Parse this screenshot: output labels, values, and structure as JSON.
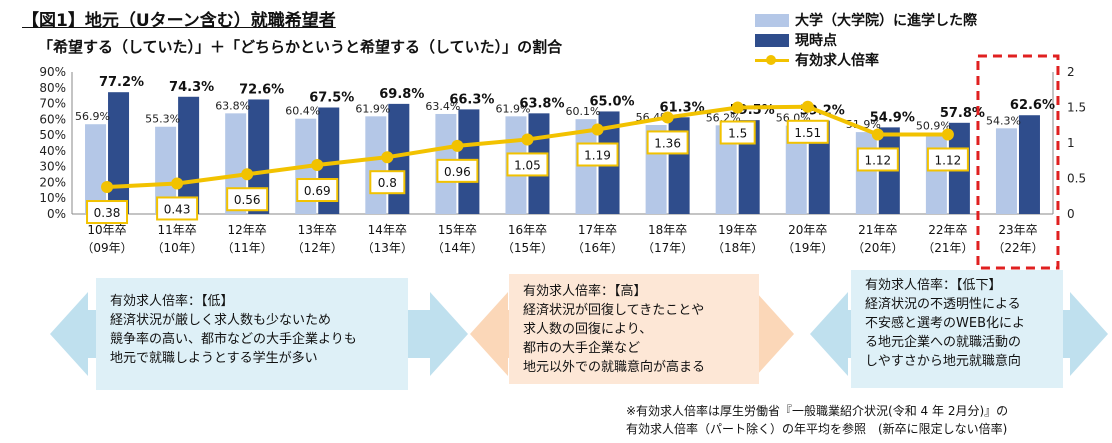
{
  "title": "【図1】地元（Uターン含む）就職希望者",
  "subtitle": "「希望する（していた）」＋「どちらかというと希望する（していた）」の割合",
  "legend": {
    "series1": "大学（大学院）に進学した際",
    "series2": "現時点",
    "line": "有効求人倍率"
  },
  "colors": {
    "light": "#b4c7e7",
    "dark": "#2f4d8c",
    "line": "#f2c200",
    "highlight": "#e02020"
  },
  "chart_data": {
    "type": "bar",
    "categories": [
      "10年卒",
      "11年卒",
      "12年卒",
      "13年卒",
      "14年卒",
      "15年卒",
      "16年卒",
      "17年卒",
      "18年卒",
      "19年卒",
      "20年卒",
      "21年卒",
      "22年卒",
      "23年卒"
    ],
    "subcategories": [
      "（09年）",
      "（10年）",
      "（11年）",
      "（12年）",
      "（13年）",
      "（14年）",
      "（15年）",
      "（16年）",
      "（17年）",
      "（18年）",
      "（19年）",
      "（20年）",
      "（21年）",
      "（22年）"
    ],
    "series": [
      {
        "name": "大学（大学院）に進学した際",
        "values": [
          56.9,
          55.3,
          63.8,
          60.4,
          61.9,
          63.4,
          61.9,
          60.1,
          56.4,
          56.2,
          56.0,
          51.9,
          50.9,
          54.3
        ],
        "labels": [
          "56.9%",
          "55.3%",
          "63.8%",
          "60.4%",
          "61.9%",
          "63.4%",
          "61.9%",
          "60.1%",
          "56.4%",
          "56.2%",
          "56.0%",
          "51.9%",
          "50.9%",
          "54.3%"
        ]
      },
      {
        "name": "現時点",
        "values": [
          77.2,
          74.3,
          72.6,
          67.5,
          69.8,
          66.3,
          63.8,
          65.0,
          61.3,
          59.5,
          59.2,
          54.9,
          57.8,
          62.6
        ],
        "labels": [
          "77.2%",
          "74.3%",
          "72.6%",
          "67.5%",
          "69.8%",
          "66.3%",
          "63.8%",
          "65.0%",
          "61.3%",
          "59.5%",
          "59.2%",
          "54.9%",
          "57.8%",
          "62.6%"
        ]
      }
    ],
    "line_series": {
      "name": "有効求人倍率",
      "values": [
        0.38,
        0.43,
        0.56,
        0.69,
        0.8,
        0.96,
        1.05,
        1.19,
        1.36,
        1.5,
        1.51,
        1.12,
        1.12
      ],
      "labels": [
        "0.38",
        "0.43",
        "0.56",
        "0.69",
        "0.8",
        "0.96",
        "1.05",
        "1.19",
        "1.36",
        "1.5",
        "1.51",
        "1.12",
        "1.12"
      ]
    },
    "y_ticks": [
      "0%",
      "10%",
      "20%",
      "30%",
      "40%",
      "50%",
      "60%",
      "70%",
      "80%",
      "90%"
    ],
    "y2_ticks": [
      "0",
      "0.5",
      "1",
      "1.5",
      "2"
    ],
    "ylim": [
      0,
      90
    ],
    "y2lim": [
      0,
      2
    ]
  },
  "panels": {
    "low": {
      "title": "有効求人倍率：【低】",
      "lines": [
        "経済状況が厳しく求人数も少ないため",
        "競争率の高い、都市などの大手企業よりも",
        "地元で就職しようとする学生が多い"
      ]
    },
    "high": {
      "title": "有効求人倍率：【高】",
      "lines": [
        "経済状況が回復してきたことや",
        "求人数の回復により、",
        "都市の大手企業など",
        "地元以外での就職意向が高まる"
      ]
    },
    "decline": {
      "title": "有効求人倍率：【低下】",
      "lines": [
        "経済状況の不透明性による",
        "不安感と選考のWEB化によ",
        "る地元企業への就職活動の",
        "しやすさから地元就職意向"
      ]
    }
  },
  "note": {
    "line1": "※有効求人倍率は厚生労働省『一般職業紹介状況(令和 4 年 2月分)』の",
    "line2": "有効求人倍率（パート除く）の年平均を参照　(新卒に限定しない倍率)"
  }
}
